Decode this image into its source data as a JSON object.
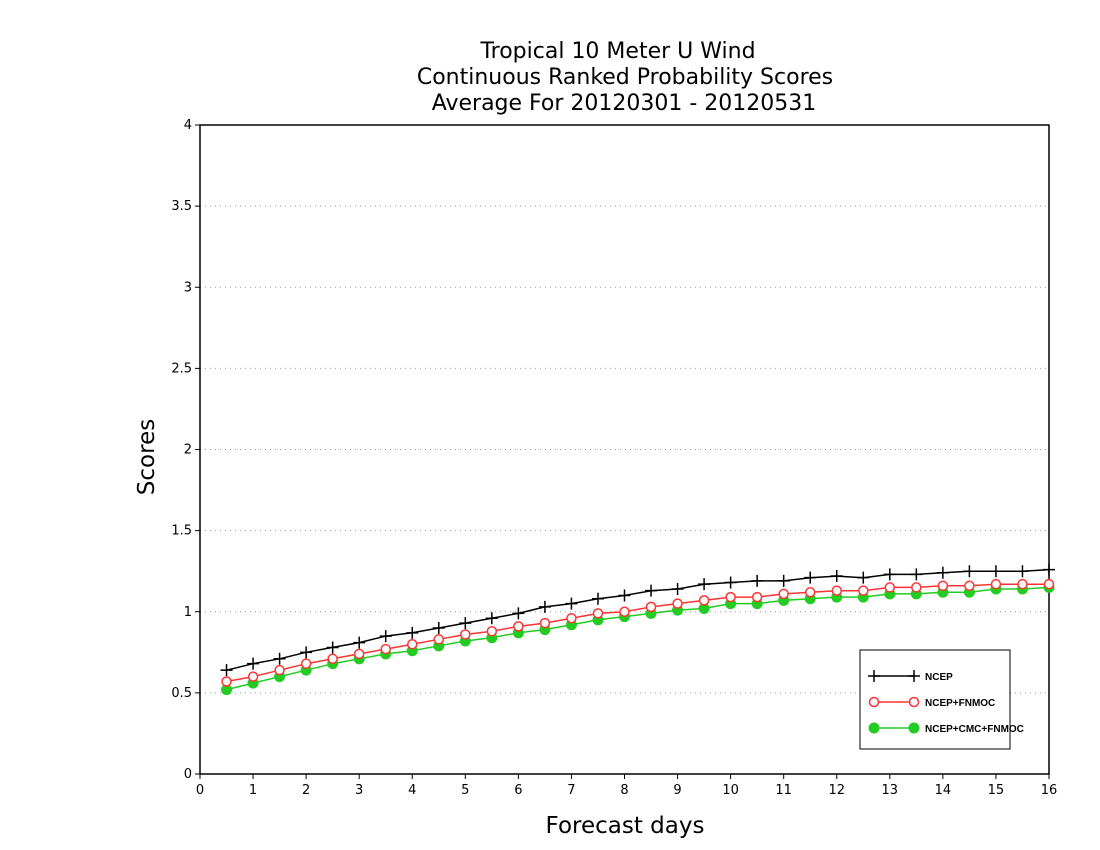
{
  "chart_data": {
    "type": "line",
    "title_lines": [
      "Tropical 10 Meter U Wind",
      "Continuous Ranked Probability Scores",
      "Average For 20120301 - 20120531"
    ],
    "xlabel": "Forecast days",
    "ylabel": "Scores",
    "xlim": [
      0,
      16
    ],
    "ylim": [
      0,
      4
    ],
    "xticks": [
      0,
      1,
      2,
      3,
      4,
      5,
      6,
      7,
      8,
      9,
      10,
      11,
      12,
      13,
      14,
      15,
      16
    ],
    "yticks": [
      0,
      0.5,
      1,
      1.5,
      2,
      2.5,
      3,
      3.5,
      4
    ],
    "ytick_labels": [
      "0",
      "0.5",
      "1",
      "1.5",
      "2",
      "2.5",
      "3",
      "3.5",
      "4"
    ],
    "grid": "horizontal-dotted",
    "legend_position": "bottom-right",
    "x": [
      0.5,
      1,
      1.5,
      2,
      2.5,
      3,
      3.5,
      4,
      4.5,
      5,
      5.5,
      6,
      6.5,
      7,
      7.5,
      8,
      8.5,
      9,
      9.5,
      10,
      10.5,
      11,
      11.5,
      12,
      12.5,
      13,
      13.5,
      14,
      14.5,
      15,
      15.5,
      16
    ],
    "series": [
      {
        "name": "NCEP",
        "color": "#000000",
        "marker": "plus",
        "values": [
          0.64,
          0.68,
          0.71,
          0.75,
          0.78,
          0.81,
          0.85,
          0.87,
          0.9,
          0.93,
          0.96,
          0.99,
          1.03,
          1.05,
          1.08,
          1.1,
          1.13,
          1.14,
          1.17,
          1.18,
          1.19,
          1.19,
          1.21,
          1.22,
          1.21,
          1.23,
          1.23,
          1.24,
          1.25,
          1.25,
          1.25,
          1.26
        ]
      },
      {
        "name": "NCEP+FNMOC",
        "color": "#ff3333",
        "marker": "open-circle",
        "values": [
          0.57,
          0.6,
          0.64,
          0.68,
          0.71,
          0.74,
          0.77,
          0.8,
          0.83,
          0.86,
          0.88,
          0.91,
          0.93,
          0.96,
          0.99,
          1.0,
          1.03,
          1.05,
          1.07,
          1.09,
          1.09,
          1.11,
          1.12,
          1.13,
          1.13,
          1.15,
          1.15,
          1.16,
          1.16,
          1.17,
          1.17,
          1.17
        ]
      },
      {
        "name": "NCEP+CMC+FNMOC",
        "color": "#22cc22",
        "marker": "filled-circle",
        "values": [
          0.52,
          0.56,
          0.6,
          0.64,
          0.68,
          0.71,
          0.74,
          0.76,
          0.79,
          0.82,
          0.84,
          0.87,
          0.89,
          0.92,
          0.95,
          0.97,
          0.99,
          1.01,
          1.02,
          1.05,
          1.05,
          1.07,
          1.08,
          1.09,
          1.09,
          1.11,
          1.11,
          1.12,
          1.12,
          1.14,
          1.14,
          1.15
        ]
      }
    ]
  }
}
